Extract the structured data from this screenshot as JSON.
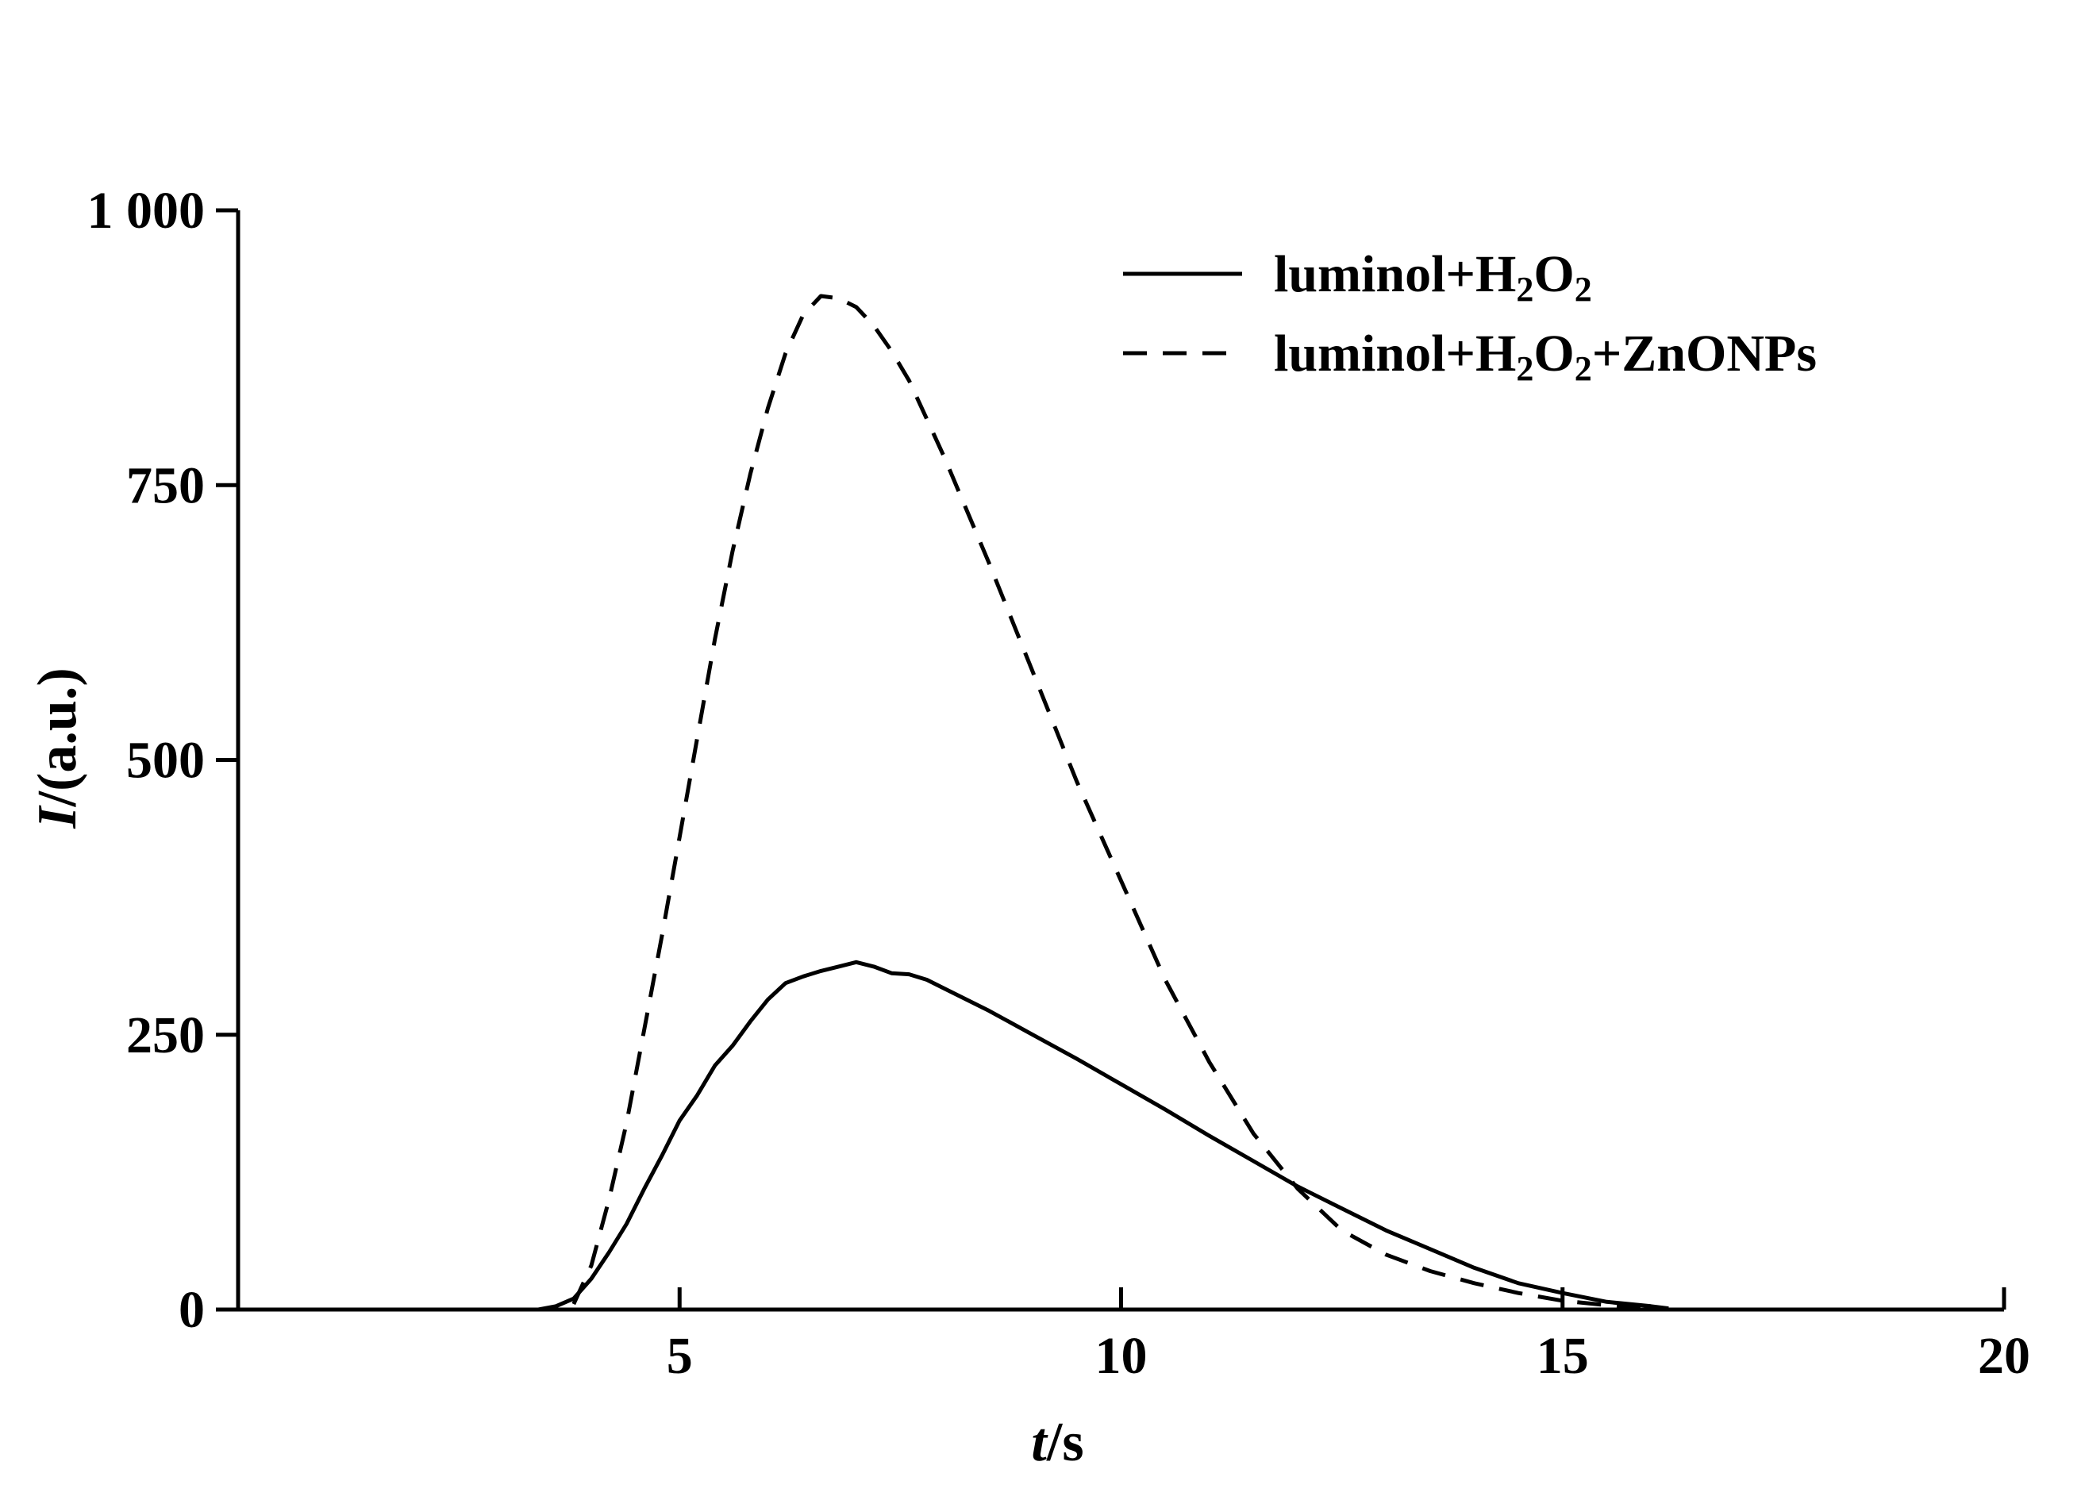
{
  "chart_data": {
    "type": "line",
    "title": "",
    "xlabel": {
      "italic": "t",
      "rest": "/s"
    },
    "ylabel": {
      "italic": "I",
      "rest": "/(a.u.)"
    },
    "xlim": [
      0,
      20
    ],
    "ylim": [
      0,
      1000
    ],
    "x_ticks": [
      5,
      10,
      15,
      20
    ],
    "x_tick_labels": [
      "5",
      "10",
      "15",
      "20"
    ],
    "y_ticks": [
      0,
      250,
      500,
      750,
      1000
    ],
    "y_tick_labels": [
      "0",
      "250",
      "500",
      "750",
      "1 000"
    ],
    "grid": false,
    "legend_position": "top-right",
    "series": [
      {
        "name": "luminol+H2O2",
        "legend_parts": [
          {
            "t": "luminol+H",
            "sub": false
          },
          {
            "t": "2",
            "sub": true
          },
          {
            "t": "O",
            "sub": false
          },
          {
            "t": "2",
            "sub": true
          }
        ],
        "style": "solid",
        "color": "#000000",
        "x": [
          3.4,
          3.6,
          3.8,
          4.0,
          4.2,
          4.4,
          4.6,
          4.8,
          5.0,
          5.2,
          5.4,
          5.6,
          5.8,
          6.0,
          6.2,
          6.4,
          6.6,
          6.8,
          7.0,
          7.2,
          7.4,
          7.6,
          7.8,
          8.0,
          8.5,
          9.0,
          9.5,
          10.0,
          10.5,
          11.0,
          11.5,
          12.0,
          12.5,
          13.0,
          13.5,
          14.0,
          14.5,
          15.0,
          15.5,
          16.0,
          16.2
        ],
        "y": [
          0,
          3,
          10,
          28,
          52,
          78,
          110,
          140,
          172,
          195,
          222,
          240,
          262,
          282,
          297,
          303,
          308,
          312,
          316,
          312,
          306,
          305,
          300,
          292,
          272,
          250,
          228,
          205,
          182,
          158,
          135,
          112,
          92,
          72,
          55,
          38,
          24,
          15,
          7,
          3,
          1
        ]
      },
      {
        "name": "luminol+H2O2+ZnONPs",
        "legend_parts": [
          {
            "t": "luminol+H",
            "sub": false
          },
          {
            "t": "2",
            "sub": true
          },
          {
            "t": "O",
            "sub": false
          },
          {
            "t": "2",
            "sub": true
          },
          {
            "t": "+ZnONPs",
            "sub": false
          }
        ],
        "style": "dashed",
        "color": "#000000",
        "x": [
          3.8,
          4.0,
          4.2,
          4.4,
          4.6,
          4.8,
          5.0,
          5.2,
          5.4,
          5.6,
          5.8,
          6.0,
          6.2,
          6.4,
          6.6,
          6.8,
          7.0,
          7.2,
          7.4,
          7.6,
          7.8,
          8.0,
          8.5,
          9.0,
          9.5,
          10.0,
          10.5,
          11.0,
          11.5,
          12.0,
          12.5,
          13.0,
          13.5,
          14.0,
          14.5,
          15.0,
          15.5,
          16.0
        ],
        "y": [
          5,
          40,
          100,
          170,
          255,
          340,
          430,
          520,
          610,
          690,
          760,
          820,
          870,
          905,
          922,
          920,
          912,
          895,
          872,
          845,
          810,
          775,
          680,
          580,
          480,
          390,
          300,
          225,
          160,
          110,
          72,
          50,
          35,
          24,
          15,
          8,
          4,
          1
        ]
      }
    ]
  }
}
